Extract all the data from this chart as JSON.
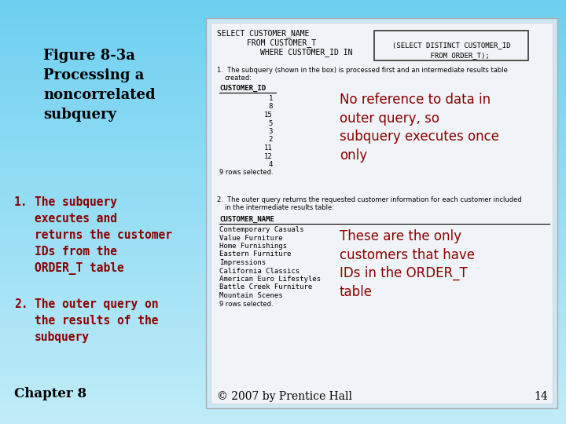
{
  "bg_top": "#6ecff0",
  "bg_bottom": "#c0ecf8",
  "title_text": "Figure 8-3a\nProcessing a\nnoncorrelated\nsubquery",
  "title_color": "#000000",
  "title_fontsize": 13,
  "item1_num": "1.",
  "item1_text": "The subquery\nexecutes and\nreturns the customer\nIDs from the\nORDER_T table",
  "item2_num": "2.",
  "item2_text": "The outer query on\nthe results of the\nsubquery",
  "item_color": "#8b0000",
  "item_fontsize": 10.5,
  "chapter_text": "Chapter 8",
  "chapter_fontsize": 12,
  "panel_bg": "#cce8f4",
  "panel_inner_bg": "#ffffff",
  "sql_line1": "SELECT CUSTOMER_NAME",
  "sql_line2": "FROM CUSTOMER_T",
  "sql_line3": "WHERE CUSTOMER_ID IN",
  "subquery_box_text": "(SELECT DISTINCT CUSTOMER_ID\n    FROM ORDER_T);",
  "note1_text": "No reference to data in\nouter query, so\nsubquery executes once\nonly",
  "note1_color": "#8b0000",
  "note1_fontsize": 12,
  "note2_text": "These are the only\ncustomers that have\nIDs in the ORDER_T\ntable",
  "note2_color": "#8b0000",
  "note2_fontsize": 12,
  "step1_desc": "1.  The subquery (shown in the box) is processed first and an intermediate results table\n    created:",
  "customer_id_label": "CUSTOMER_ID",
  "customer_ids": [
    "1",
    "8",
    "15",
    "5",
    "3",
    "2",
    "11",
    "12",
    "4"
  ],
  "rows_selected1": "9 rows selected.",
  "step2_desc": "2.  The outer query returns the requested customer information for each customer included\n    in the intermediate results table:",
  "customer_name_label": "CUSTOMER_NAME",
  "customer_names": [
    "Contemporary Casuals",
    "Value Furniture",
    "Home Furnishings",
    "Eastern Furniture",
    "Impressions",
    "California Classics",
    "American Euro Lifestyles",
    "Battle Creek Furniture",
    "Mountain Scenes"
  ],
  "rows_selected2": "9 rows selected.",
  "footer_text": "© 2007 by Prentice Hall",
  "footer_page": "14",
  "footer_fontsize": 10
}
